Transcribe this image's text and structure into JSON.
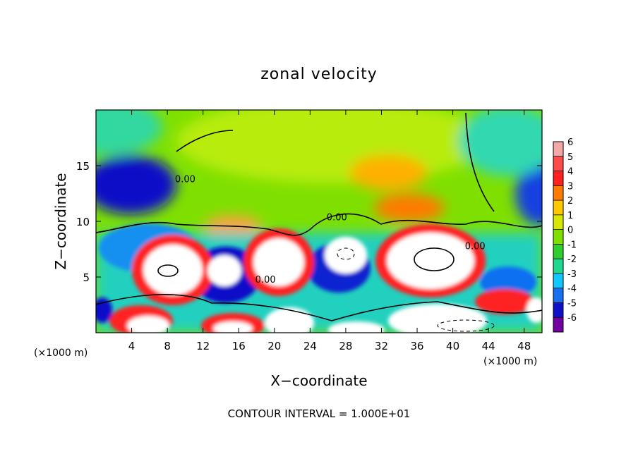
{
  "chart_data": {
    "type": "heatmap",
    "title": "zonal velocity",
    "xlabel": "X−coordinate",
    "ylabel": "Z−coordinate",
    "x_unit_left": "(×1000 m)",
    "x_unit_right": "(×1000 m)",
    "footer": "CONTOUR INTERVAL = 1.000E+01",
    "xlim": [
      0,
      50
    ],
    "ylim": [
      0,
      20
    ],
    "x_ticks": [
      4,
      8,
      12,
      16,
      20,
      24,
      28,
      32,
      36,
      40,
      44,
      48
    ],
    "y_ticks": [
      5,
      10,
      15
    ],
    "grid": false,
    "contour_labels": [
      {
        "text": "0.00",
        "x": 10,
        "y": 13.5
      },
      {
        "text": "0.00",
        "x": 19,
        "y": 4.5
      },
      {
        "text": "0.00",
        "x": 27,
        "y": 10.1
      },
      {
        "text": "0.00",
        "x": 42.5,
        "y": 7.5
      }
    ],
    "colorbar": {
      "levels": [
        6,
        5,
        4,
        3,
        2,
        1,
        0,
        -1,
        -2,
        -3,
        -4,
        -5,
        -6
      ],
      "colors": [
        "#f4a8a8",
        "#fd4a4a",
        "#ff2020",
        "#ff7a00",
        "#ffc800",
        "#d8e800",
        "#7fe000",
        "#30cf30",
        "#20d890",
        "#10c8ff",
        "#1870f0",
        "#1010c8",
        "#7000a0"
      ]
    }
  }
}
